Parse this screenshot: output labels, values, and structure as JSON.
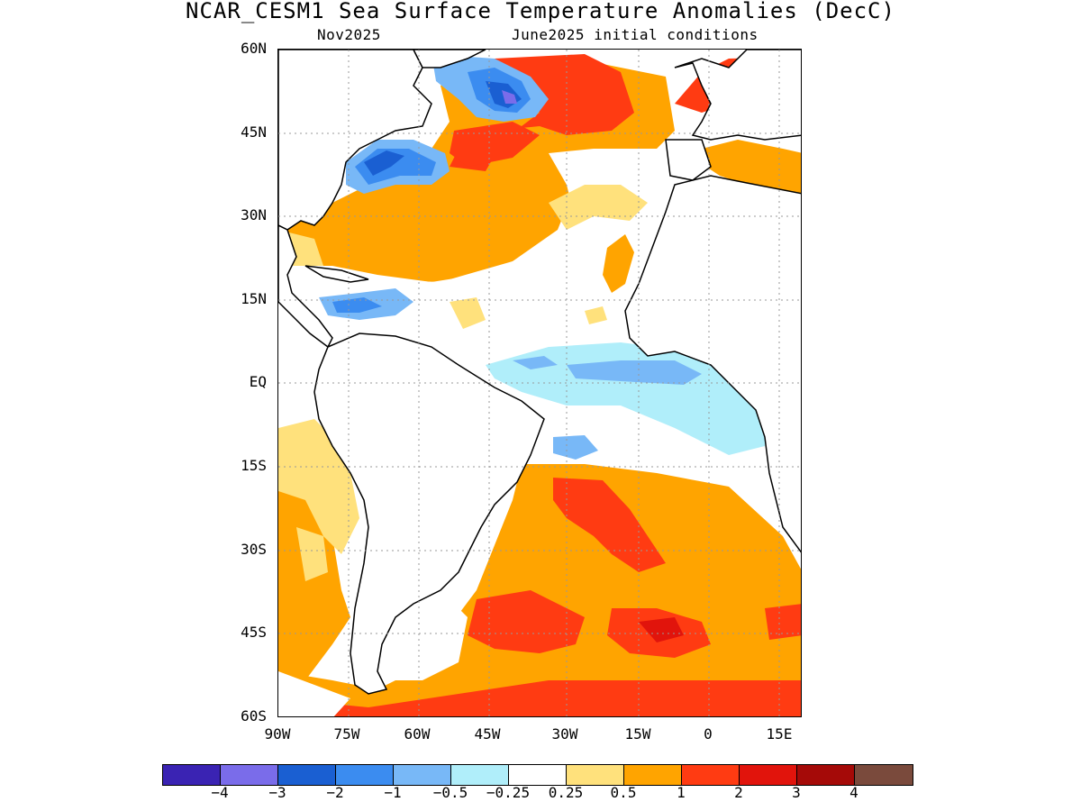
{
  "title": "NCAR_CESM1 Sea Surface Temperature Anomalies (DecC)",
  "subtitle_left": "Nov2025",
  "subtitle_right": "June2025 initial conditions",
  "y_axis_labels": [
    "60N",
    "45N",
    "30N",
    "15N",
    "EQ",
    "15S",
    "30S",
    "45S",
    "60S"
  ],
  "x_axis_labels": [
    "90W",
    "75W",
    "60W",
    "45W",
    "30W",
    "15W",
    "0",
    "15E"
  ],
  "colorbar": {
    "colors": [
      "#3a23b3",
      "#7a6cea",
      "#1a5fd2",
      "#3b8cf0",
      "#78b8f7",
      "#b0eefa",
      "#ffffff",
      "#ffe17c",
      "#ffa400",
      "#ff3b12",
      "#e1140c",
      "#a50a08",
      "#7a4a3c"
    ],
    "labels": [
      "-4",
      "-3",
      "-2",
      "-1",
      "-0.5",
      "-0.25",
      "0.25",
      "0.5",
      "1",
      "2",
      "3",
      "4"
    ]
  },
  "map_regions": {
    "land_color": "#ffffff",
    "coast_color": "#000000",
    "grid_color": "#999999"
  }
}
